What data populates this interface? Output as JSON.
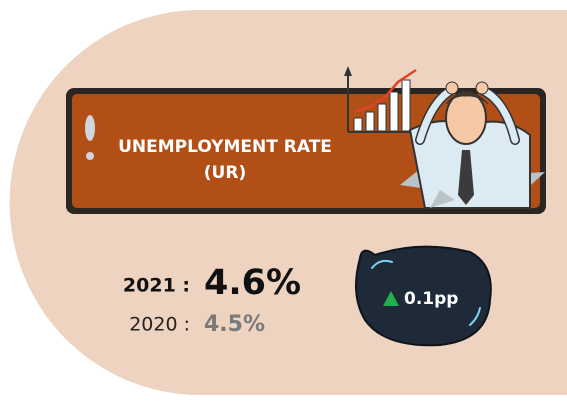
{
  "banner": {
    "title": "UNEMPLOYMENT RATE",
    "subtitle": "(UR)"
  },
  "current": {
    "label": "2021 :",
    "value": "4.6%"
  },
  "previous": {
    "label": "2020 :",
    "value": "4.5%"
  },
  "change": {
    "value": "0.1pp"
  }
}
